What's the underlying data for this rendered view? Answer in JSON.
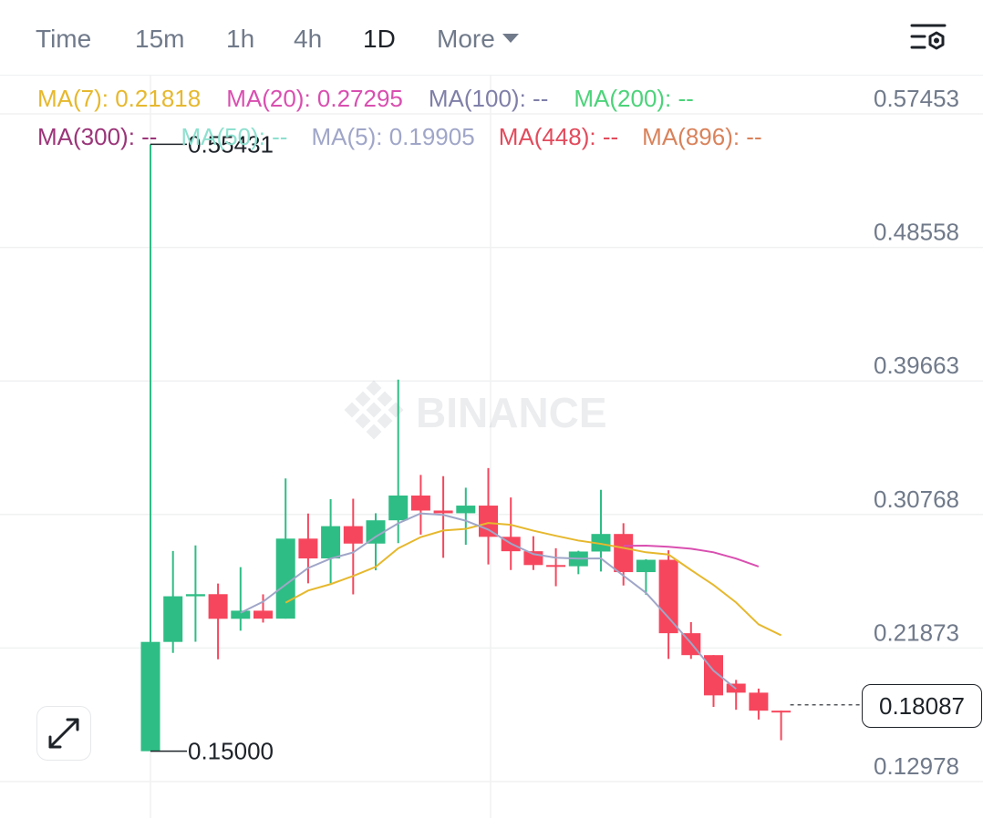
{
  "toolbar": {
    "items": [
      {
        "label": "Time",
        "active": false
      },
      {
        "label": "15m",
        "active": false
      },
      {
        "label": "1h",
        "active": false
      },
      {
        "label": "4h",
        "active": false
      },
      {
        "label": "1D",
        "active": true
      },
      {
        "label": "More",
        "active": false
      }
    ],
    "settings_icon": "chart-settings-icon"
  },
  "ma_legend": {
    "row1": [
      {
        "label": "MA(7): 0.21818",
        "color": "#e6b82e"
      },
      {
        "label": "MA(20): 0.27295",
        "color": "#d94fb0"
      },
      {
        "label": "MA(100): --",
        "color": "#7f7fa8"
      },
      {
        "label": "MA(200): --",
        "color": "#4cd37a"
      }
    ],
    "row2": [
      {
        "label": "MA(300): --",
        "color": "#9b3579"
      },
      {
        "label": "MA(50): --",
        "color": "#8ee0cf"
      },
      {
        "label": "MA(5): 0.19905",
        "color": "#a0a6c8"
      },
      {
        "label": "MA(448): --",
        "color": "#e24b5c"
      },
      {
        "label": "MA(896): --",
        "color": "#d9825b"
      }
    ]
  },
  "watermark": "BINANCE",
  "current_price": "0.18087",
  "high_label": "0.55431",
  "low_label": "0.15000",
  "expand_icon": "expand-arrows-icon",
  "colors": {
    "up": "#2ebd85",
    "down": "#f6465d",
    "grid": "#f0f1f2"
  },
  "chart_data": {
    "type": "candlestick",
    "y_ticks": [
      "0.57453",
      "0.48558",
      "0.39663",
      "0.30768",
      "0.21873",
      "0.12978"
    ],
    "ylim": [
      0.12978,
      0.57453
    ],
    "candles": [
      {
        "o": 0.15,
        "h": 0.5543,
        "l": 0.15,
        "c": 0.2228
      },
      {
        "o": 0.2228,
        "h": 0.2834,
        "l": 0.2155,
        "c": 0.2532
      },
      {
        "o": 0.2532,
        "h": 0.2871,
        "l": 0.2229,
        "c": 0.2546
      },
      {
        "o": 0.2546,
        "h": 0.2617,
        "l": 0.2112,
        "c": 0.2382
      },
      {
        "o": 0.2382,
        "h": 0.2726,
        "l": 0.2303,
        "c": 0.2436
      },
      {
        "o": 0.2436,
        "h": 0.2545,
        "l": 0.2357,
        "c": 0.2383
      },
      {
        "o": 0.2383,
        "h": 0.3317,
        "l": 0.2383,
        "c": 0.2916
      },
      {
        "o": 0.2916,
        "h": 0.3083,
        "l": 0.2618,
        "c": 0.2784
      },
      {
        "o": 0.2784,
        "h": 0.3179,
        "l": 0.2618,
        "c": 0.2999
      },
      {
        "o": 0.2999,
        "h": 0.3182,
        "l": 0.2545,
        "c": 0.2883
      },
      {
        "o": 0.2883,
        "h": 0.3085,
        "l": 0.2705,
        "c": 0.3038
      },
      {
        "o": 0.3038,
        "h": 0.3975,
        "l": 0.2886,
        "c": 0.3203
      },
      {
        "o": 0.3203,
        "h": 0.334,
        "l": 0.2943,
        "c": 0.3103
      },
      {
        "o": 0.3103,
        "h": 0.3332,
        "l": 0.2788,
        "c": 0.3085
      },
      {
        "o": 0.3085,
        "h": 0.3255,
        "l": 0.2875,
        "c": 0.3136
      },
      {
        "o": 0.3136,
        "h": 0.3386,
        "l": 0.2744,
        "c": 0.2928
      },
      {
        "o": 0.2928,
        "h": 0.319,
        "l": 0.2707,
        "c": 0.2832
      },
      {
        "o": 0.2832,
        "h": 0.2932,
        "l": 0.2707,
        "c": 0.274
      },
      {
        "o": 0.274,
        "h": 0.2852,
        "l": 0.2599,
        "c": 0.2732
      },
      {
        "o": 0.2732,
        "h": 0.2835,
        "l": 0.2679,
        "c": 0.283
      },
      {
        "o": 0.283,
        "h": 0.3241,
        "l": 0.2697,
        "c": 0.2947
      },
      {
        "o": 0.2947,
        "h": 0.3019,
        "l": 0.2604,
        "c": 0.2693
      },
      {
        "o": 0.2693,
        "h": 0.2779,
        "l": 0.2542,
        "c": 0.2775
      },
      {
        "o": 0.2775,
        "h": 0.2838,
        "l": 0.2115,
        "c": 0.2286
      },
      {
        "o": 0.2286,
        "h": 0.236,
        "l": 0.2115,
        "c": 0.214
      },
      {
        "o": 0.214,
        "h": 0.214,
        "l": 0.1795,
        "c": 0.1872
      },
      {
        "o": 0.195,
        "h": 0.1975,
        "l": 0.1776,
        "c": 0.189
      },
      {
        "o": 0.189,
        "h": 0.1917,
        "l": 0.1711,
        "c": 0.177
      },
      {
        "o": 0.177,
        "h": 0.177,
        "l": 0.1573,
        "c": 0.176
      }
    ],
    "ma_series": [
      {
        "name": "MA(7)",
        "color": "#e6b82e",
        "start": 6,
        "values": [
          0.2489,
          0.257,
          0.2613,
          0.2667,
          0.2728,
          0.2851,
          0.2926,
          0.297,
          0.2981,
          0.302,
          0.3008,
          0.2969,
          0.2935,
          0.2903,
          0.2881,
          0.2854,
          0.2825,
          0.281,
          0.2707,
          0.2607,
          0.2491,
          0.2345,
          0.2272
        ]
      }
    ],
    "ma5_series": {
      "name": "MA(5)",
      "color": "#a0a6c8",
      "start": 4,
      "values": [
        0.2422,
        0.2496,
        0.261,
        0.272,
        0.2783,
        0.2824,
        0.2929,
        0.3018,
        0.3084,
        0.3074,
        0.3035,
        0.2976,
        0.2883,
        0.2813,
        0.2789,
        0.2783,
        0.2784,
        0.2669,
        0.2555,
        0.239,
        0.222,
        0.2036,
        0.1915
      ]
    },
    "ma20_series": {
      "name": "MA(20)",
      "color": "#d94fb0",
      "start": 21,
      "values": [
        0.2868,
        0.2869,
        0.2862,
        0.2849,
        0.2825,
        0.2783,
        0.273
      ]
    }
  }
}
